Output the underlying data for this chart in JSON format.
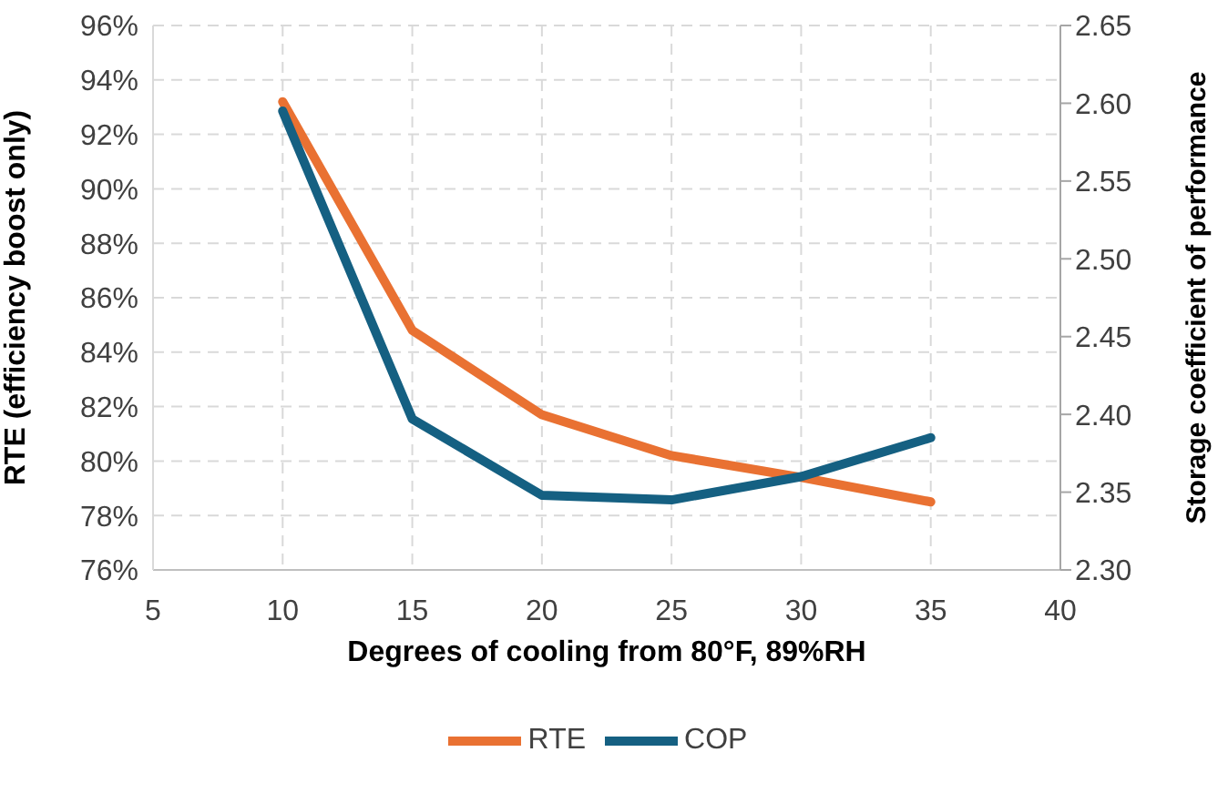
{
  "chart_data": {
    "type": "line",
    "xlabel": "Degrees of cooling from 80°F, 89%RH",
    "ylabel": "RTE (efficiency boost only)",
    "y2label": "Storage coefficient of performance",
    "x": [
      10,
      15,
      20,
      25,
      30,
      35
    ],
    "series": [
      {
        "name": "RTE",
        "color": "#e97132",
        "values": [
          93.2,
          84.8,
          81.7,
          80.2,
          79.4,
          78.5
        ]
      },
      {
        "name": "COP",
        "color": "#156082",
        "axis": "y2",
        "values": [
          2.595,
          2.397,
          2.348,
          2.345,
          2.36,
          2.385
        ]
      }
    ],
    "xlim": [
      5,
      40
    ],
    "xticks": [
      5,
      10,
      15,
      20,
      25,
      30,
      35,
      40
    ],
    "ylim": [
      76,
      96
    ],
    "yticks": [
      {
        "value": 76,
        "label": "76%"
      },
      {
        "value": 78,
        "label": "78%"
      },
      {
        "value": 80,
        "label": "80%"
      },
      {
        "value": 82,
        "label": "82%"
      },
      {
        "value": 84,
        "label": "84%"
      },
      {
        "value": 86,
        "label": "86%"
      },
      {
        "value": 88,
        "label": "88%"
      },
      {
        "value": 90,
        "label": "90%"
      },
      {
        "value": 92,
        "label": "92%"
      },
      {
        "value": 94,
        "label": "94%"
      },
      {
        "value": 96,
        "label": "96%"
      }
    ],
    "y2lim": [
      2.3,
      2.65
    ],
    "y2ticks": [
      {
        "value": 2.3,
        "label": "2.30"
      },
      {
        "value": 2.35,
        "label": "2.35"
      },
      {
        "value": 2.4,
        "label": "2.40"
      },
      {
        "value": 2.45,
        "label": "2.45"
      },
      {
        "value": 2.5,
        "label": "2.50"
      },
      {
        "value": 2.55,
        "label": "2.55"
      },
      {
        "value": 2.6,
        "label": "2.60"
      },
      {
        "value": 2.65,
        "label": "2.65"
      }
    ],
    "grid": true,
    "legend": "bottom",
    "line_style": "solid"
  }
}
